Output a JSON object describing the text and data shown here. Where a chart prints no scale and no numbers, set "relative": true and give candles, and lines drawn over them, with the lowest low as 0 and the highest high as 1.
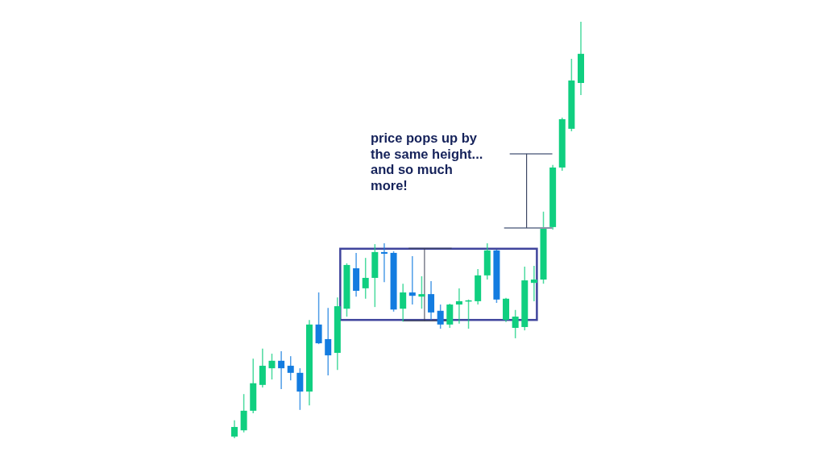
{
  "chart_data": {
    "type": "candlestick",
    "relative": true,
    "categories": [
      null,
      null,
      null,
      null,
      null,
      null,
      null,
      null,
      null,
      null,
      null,
      null,
      null,
      null,
      null,
      null,
      null,
      null,
      null,
      null,
      null,
      null,
      null,
      null,
      null,
      null,
      null,
      null,
      null,
      null,
      null,
      null,
      null,
      null,
      null,
      null,
      null,
      null
    ],
    "ohlc": [
      [
        0.004,
        0.043,
        0,
        0.027
      ],
      [
        0.019,
        0.106,
        0.014,
        0.066
      ],
      [
        0.066,
        0.191,
        0.06,
        0.132
      ],
      [
        0.128,
        0.215,
        0.122,
        0.174
      ],
      [
        0.168,
        0.203,
        0.141,
        0.186
      ],
      [
        0.186,
        0.209,
        0.118,
        0.168
      ],
      [
        0.174,
        0.197,
        0.139,
        0.157
      ],
      [
        0.157,
        0.168,
        0.068,
        0.112
      ],
      [
        0.112,
        0.284,
        0.079,
        0.273
      ],
      [
        0.273,
        0.35,
        0.226,
        0.228
      ],
      [
        0.238,
        0.313,
        0.151,
        0.199
      ],
      [
        0.205,
        0.338,
        0.164,
        0.317
      ],
      [
        0.311,
        0.42,
        0.292,
        0.416
      ],
      [
        0.408,
        0.445,
        0.34,
        0.354
      ],
      [
        0.36,
        0.433,
        0.335,
        0.385
      ],
      [
        0.385,
        0.466,
        0.315,
        0.447
      ],
      [
        0.447,
        0.468,
        0.375,
        0.443
      ],
      [
        0.445,
        0.449,
        0.304,
        0.309
      ],
      [
        0.311,
        0.371,
        0.28,
        0.35
      ],
      [
        0.35,
        0.437,
        0.321,
        0.342
      ],
      [
        0.34,
        0.389,
        0.311,
        0.346
      ],
      [
        0.346,
        0.377,
        0.284,
        0.302
      ],
      [
        0.306,
        0.321,
        0.263,
        0.273
      ],
      [
        0.273,
        0.323,
        0.265,
        0.321
      ],
      [
        0.321,
        0.36,
        0.275,
        0.329
      ],
      [
        0.329,
        0.333,
        0.263,
        0.331
      ],
      [
        0.329,
        0.406,
        0.321,
        0.391
      ],
      [
        0.391,
        0.468,
        0.381,
        0.451
      ],
      [
        0.451,
        0.453,
        0.325,
        0.333
      ],
      [
        0.284,
        0.337,
        0.279,
        0.335
      ],
      [
        0.265,
        0.308,
        0.24,
        0.292
      ],
      [
        0.267,
        0.412,
        0.259,
        0.379
      ],
      [
        0.373,
        0.414,
        0.329,
        0.381
      ],
      [
        0.381,
        0.544,
        0.371,
        0.505
      ],
      [
        0.507,
        0.656,
        0.501,
        0.65
      ],
      [
        0.65,
        0.77,
        0.642,
        0.766
      ],
      [
        0.743,
        0.911,
        0.737,
        0.859
      ],
      [
        0.853,
        1,
        0.824,
        0.923
      ]
    ],
    "colors": [
      "#10cf80",
      "#10cf80",
      "#10cf80",
      "#10cf80",
      "#10cf80",
      "#137ce0",
      "#137ce0",
      "#137ce0",
      "#10cf80",
      "#137ce0",
      "#137ce0",
      "#10cf80",
      "#10cf80",
      "#137ce0",
      "#10cf80",
      "#10cf80",
      "#137ce0",
      "#137ce0",
      "#10cf80",
      "#137ce0",
      "#10cf80",
      "#137ce0",
      "#137ce0",
      "#10cf80",
      "#10cf80",
      "#10cf80",
      "#10cf80",
      "#10cf80",
      "#137ce0",
      "#10cf80",
      "#10cf80",
      "#10cf80",
      "#10cf80",
      "#10cf80",
      "#10cf80",
      "#10cf80",
      "#10cf80",
      "#10cf80"
    ],
    "annotations": [
      "price pops up by\nthe same height...\nand so much\nmore!"
    ]
  }
}
